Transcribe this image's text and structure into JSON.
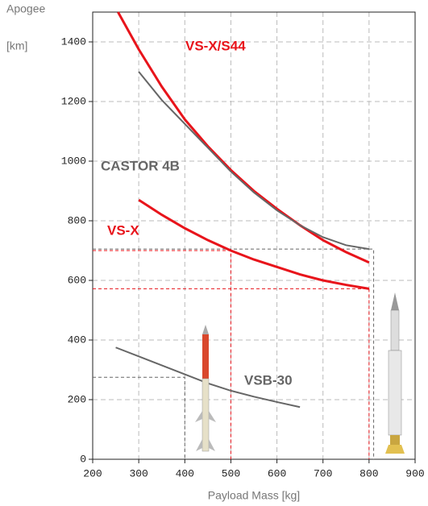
{
  "chart_data": {
    "type": "line",
    "y_label_line1": "Apogee",
    "y_label_line2": "[km]",
    "x_label": "Payload Mass [kg]",
    "xlim": [
      200,
      900
    ],
    "xticks": [
      200,
      300,
      400,
      500,
      600,
      700,
      800,
      900
    ],
    "ylim": [
      0,
      1500
    ],
    "yticks": [
      0,
      200,
      400,
      600,
      800,
      1000,
      1200,
      1400
    ],
    "grid": true,
    "series": [
      {
        "name": "VS-X/S44",
        "color": "#e8141b",
        "x": [
          255,
          300,
          350,
          400,
          450,
          500,
          550,
          600,
          650,
          700,
          750,
          800
        ],
        "values": [
          1500,
          1375,
          1250,
          1140,
          1050,
          970,
          900,
          840,
          785,
          735,
          695,
          660
        ]
      },
      {
        "name": "CASTOR 4B",
        "color": "#666666",
        "x": [
          300,
          350,
          400,
          450,
          500,
          550,
          600,
          650,
          700,
          750,
          800
        ],
        "values": [
          1300,
          1205,
          1125,
          1045,
          965,
          895,
          835,
          785,
          745,
          718,
          705
        ]
      },
      {
        "name": "VS-X",
        "color": "#e8141b",
        "x": [
          300,
          350,
          400,
          450,
          500,
          550,
          600,
          650,
          700,
          750,
          800
        ],
        "values": [
          870,
          820,
          775,
          735,
          700,
          670,
          645,
          620,
          600,
          585,
          572
        ]
      },
      {
        "name": "VSB-30",
        "color": "#666666",
        "x": [
          250,
          300,
          350,
          400,
          450,
          500,
          550,
          600,
          650
        ],
        "values": [
          375,
          345,
          315,
          285,
          255,
          230,
          210,
          192,
          175
        ]
      }
    ],
    "guides": [
      {
        "x": 500,
        "y": 700,
        "color": "#e8141b"
      },
      {
        "x": 800,
        "y": 572,
        "color": "#e8141b"
      },
      {
        "x": 810,
        "y": 705,
        "color": "#666666"
      },
      {
        "x": 400,
        "y": 275,
        "color": "#666666"
      }
    ]
  }
}
